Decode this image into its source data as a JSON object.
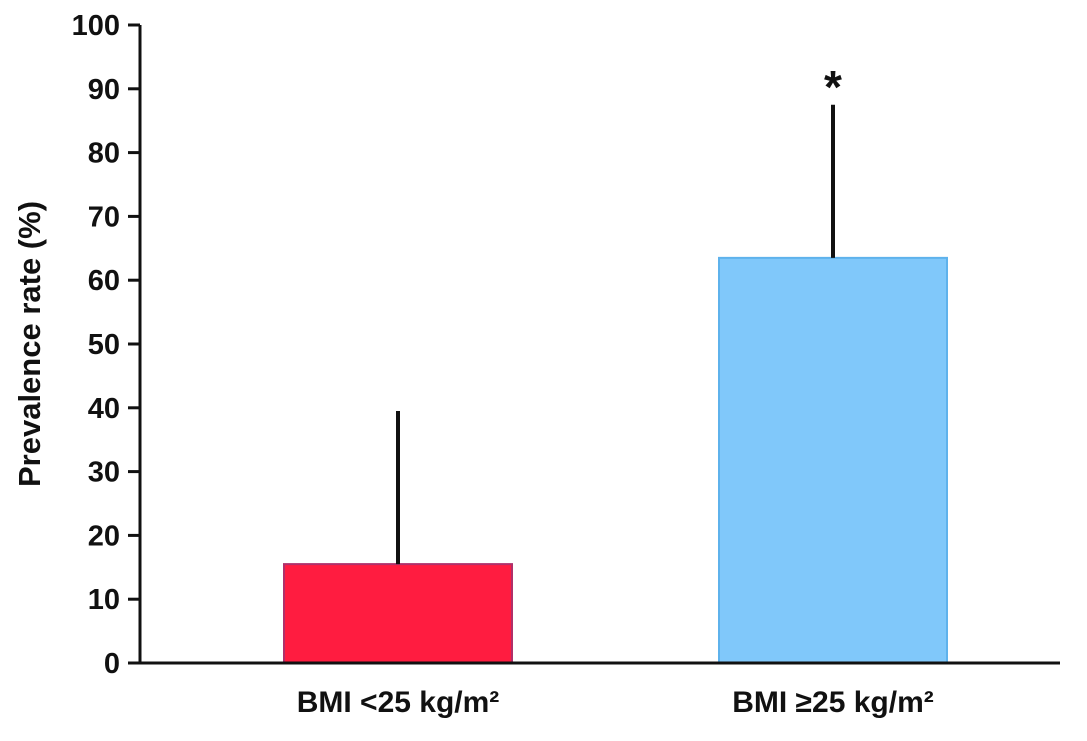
{
  "chart_data": {
    "type": "bar",
    "title": "",
    "xlabel": "",
    "ylabel": "Prevalence rate (%)",
    "ylim": [
      0,
      100
    ],
    "yticks": [
      0,
      10,
      20,
      30,
      40,
      50,
      60,
      70,
      80,
      90,
      100
    ],
    "ytick_labels": [
      "0",
      "10",
      "20",
      "30",
      "40",
      "50",
      "60",
      "70",
      "80",
      "90",
      "100"
    ],
    "grid": false,
    "legend": "none",
    "categories": [
      "BMI <25 kg/m²",
      "BMI ≥25 kg/m²"
    ],
    "values": [
      15.5,
      63.5
    ],
    "error_upper": [
      39.5,
      87.5
    ],
    "colors": [
      "#ff1c40",
      "#80c8fa"
    ],
    "edge_colors": [
      "#b0306a",
      "#5eb2ec"
    ],
    "annotations": [
      {
        "category": "BMI ≥25 kg/m²",
        "text": "*"
      }
    ]
  }
}
